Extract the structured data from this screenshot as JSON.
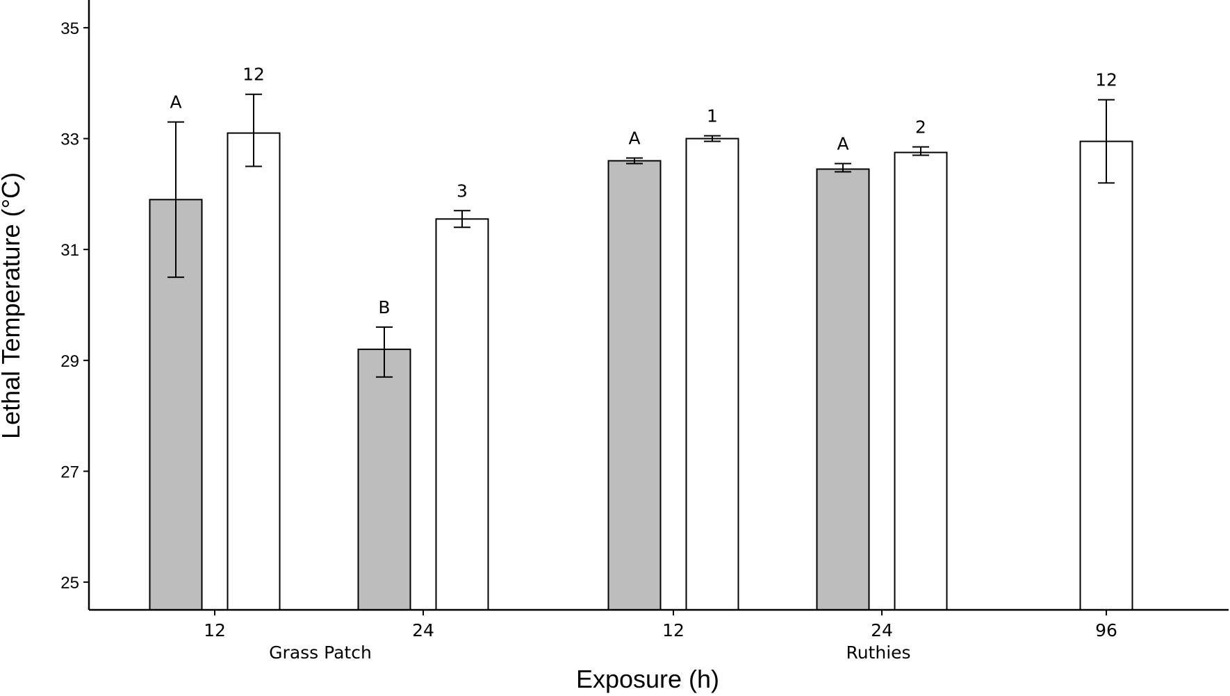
{
  "chart_data": {
    "type": "bar",
    "title": "",
    "xlabel": "Exposure (h)",
    "ylabel": "Lethal Temperature (°C)",
    "ylim": [
      24.5,
      35.5
    ],
    "yticks": [
      25,
      27,
      29,
      31,
      33,
      35
    ],
    "grid": false,
    "legend": "none",
    "colors": {
      "grey": "#bdbdbd",
      "white": "#ffffff",
      "stroke": "#000000"
    },
    "groups": [
      {
        "site": "Grass Patch",
        "exposure": "12",
        "bars": [
          {
            "fill": "grey",
            "value": 31.9,
            "err_low": 30.5,
            "err_high": 33.3,
            "label": "A"
          },
          {
            "fill": "white",
            "value": 33.1,
            "err_low": 32.5,
            "err_high": 33.8,
            "label": "12"
          }
        ]
      },
      {
        "site": "Grass Patch",
        "exposure": "24",
        "bars": [
          {
            "fill": "grey",
            "value": 29.2,
            "err_low": 28.7,
            "err_high": 29.6,
            "label": "B"
          },
          {
            "fill": "white",
            "value": 31.55,
            "err_low": 31.4,
            "err_high": 31.7,
            "label": "3"
          }
        ]
      },
      {
        "site": "Ruthies",
        "exposure": "12",
        "bars": [
          {
            "fill": "grey",
            "value": 32.6,
            "err_low": 32.55,
            "err_high": 32.65,
            "label": "A"
          },
          {
            "fill": "white",
            "value": 33.0,
            "err_low": 32.95,
            "err_high": 33.05,
            "label": "1"
          }
        ]
      },
      {
        "site": "Ruthies",
        "exposure": "24",
        "bars": [
          {
            "fill": "grey",
            "value": 32.45,
            "err_low": 32.4,
            "err_high": 32.55,
            "label": "A"
          },
          {
            "fill": "white",
            "value": 32.75,
            "err_low": 32.7,
            "err_high": 32.85,
            "label": "2"
          }
        ]
      },
      {
        "site": "Ruthies",
        "exposure": "96",
        "bars": [
          {
            "fill": "white",
            "value": 32.95,
            "err_low": 32.2,
            "err_high": 33.7,
            "label": "12"
          }
        ]
      }
    ],
    "site_labels": [
      "Grass Patch",
      "Ruthies"
    ]
  }
}
